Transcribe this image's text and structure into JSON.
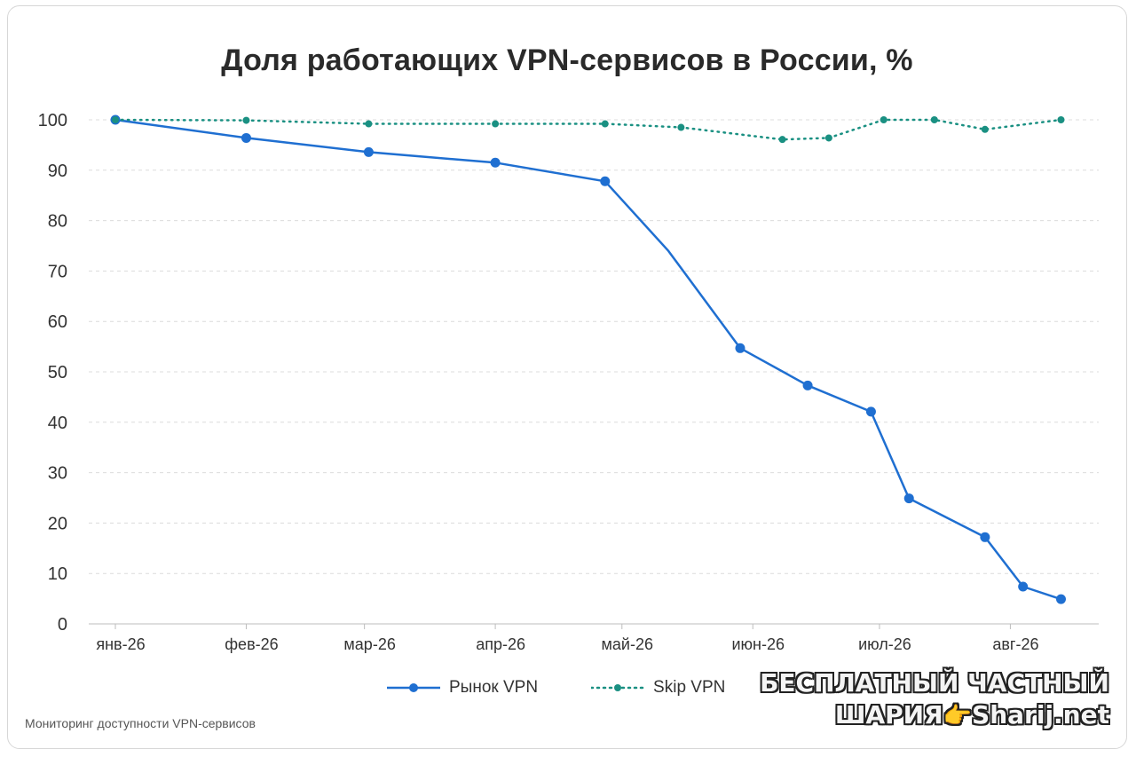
{
  "chart_data": {
    "type": "line",
    "title": "Доля работающих VPN-сервисов в России, %",
    "xlabel": "",
    "ylabel": "",
    "ylim": [
      0,
      100
    ],
    "y_ticks": [
      0,
      10,
      20,
      30,
      40,
      50,
      60,
      70,
      80,
      90,
      100
    ],
    "x_range": [
      "2026-01-01",
      "2026-08-15"
    ],
    "x_ticks": [
      {
        "date": "2026-01-01",
        "label": "янв-26"
      },
      {
        "date": "2026-02-01",
        "label": "фев-26"
      },
      {
        "date": "2026-03-01",
        "label": "мар-26"
      },
      {
        "date": "2026-04-01",
        "label": "апр-26"
      },
      {
        "date": "2026-05-01",
        "label": "май-26"
      },
      {
        "date": "2026-06-01",
        "label": "июн-26"
      },
      {
        "date": "2026-07-01",
        "label": "июл-26"
      },
      {
        "date": "2026-08-01",
        "label": "авг-26"
      }
    ],
    "grid": "horizontal dashed",
    "legend_position": "bottom",
    "series": [
      {
        "name": "Рынок VPN",
        "color": "#1f6fd1",
        "style": "solid",
        "points": [
          {
            "x": "2026-01-01",
            "y": 100,
            "marker": true
          },
          {
            "x": "2026-02-01",
            "y": 96.4,
            "marker": true
          },
          {
            "x": "2026-03-02",
            "y": 93.6,
            "marker": true
          },
          {
            "x": "2026-04-01",
            "y": 91.5,
            "marker": true
          },
          {
            "x": "2026-04-27",
            "y": 87.8,
            "marker": true
          },
          {
            "x": "2026-05-12",
            "y": 74,
            "marker": false
          },
          {
            "x": "2026-05-29",
            "y": 54.7,
            "marker": true
          },
          {
            "x": "2026-06-14",
            "y": 47.3,
            "marker": true
          },
          {
            "x": "2026-06-29",
            "y": 42.1,
            "marker": true
          },
          {
            "x": "2026-07-08",
            "y": 24.9,
            "marker": true
          },
          {
            "x": "2026-07-26",
            "y": 17.2,
            "marker": true
          },
          {
            "x": "2026-08-04",
            "y": 7.4,
            "marker": true
          },
          {
            "x": "2026-08-13",
            "y": 4.9,
            "marker": true
          }
        ]
      },
      {
        "name": "Skip VPN",
        "color": "#1a9082",
        "style": "dotted",
        "points": [
          {
            "x": "2026-01-01",
            "y": 100
          },
          {
            "x": "2026-02-01",
            "y": 99.9
          },
          {
            "x": "2026-03-02",
            "y": 99.2
          },
          {
            "x": "2026-04-01",
            "y": 99.2
          },
          {
            "x": "2026-04-27",
            "y": 99.2
          },
          {
            "x": "2026-05-15",
            "y": 98.5
          },
          {
            "x": "2026-06-08",
            "y": 96.1
          },
          {
            "x": "2026-06-19",
            "y": 96.4
          },
          {
            "x": "2026-07-02",
            "y": 100
          },
          {
            "x": "2026-07-14",
            "y": 100
          },
          {
            "x": "2026-07-26",
            "y": 98.1
          },
          {
            "x": "2026-08-13",
            "y": 100
          }
        ]
      }
    ]
  },
  "legend": {
    "items": [
      {
        "label": "Рынок VPN"
      },
      {
        "label": "Skip VPN"
      }
    ]
  },
  "caption": "Мониторинг доступности VPN-сервисов",
  "watermark": {
    "line1": "БЕСПЛАТНЫЙ ЧАСТНЫЙ",
    "line2_a": "ШАРИЯ",
    "hand": "👉",
    "line2_b": "Sharij.net"
  }
}
